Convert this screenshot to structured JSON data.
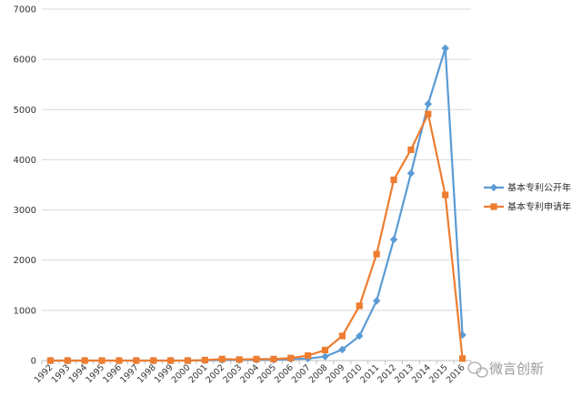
{
  "chart_data": {
    "type": "line",
    "title": "",
    "xlabel": "",
    "ylabel": "",
    "ylim": [
      0,
      7000
    ],
    "yticks": [
      0,
      1000,
      2000,
      3000,
      4000,
      5000,
      6000,
      7000
    ],
    "grid": "horizontal",
    "legend": "right",
    "categories": [
      "1992",
      "1993",
      "1994",
      "1995",
      "1996",
      "1997",
      "1998",
      "1999",
      "2000",
      "2001",
      "2002",
      "2003",
      "2004",
      "2005",
      "2006",
      "2007",
      "2008",
      "2009",
      "2010",
      "2011",
      "2012",
      "2013",
      "2014",
      "2015",
      "2016"
    ],
    "series": [
      {
        "name": "基本专利公开年",
        "color": "#5b9bd5",
        "marker": "diamond",
        "values": [
          0,
          0,
          0,
          0,
          0,
          0,
          0,
          0,
          0,
          5,
          10,
          10,
          15,
          15,
          30,
          40,
          80,
          220,
          490,
          1190,
          2410,
          3730,
          5110,
          6220,
          510
        ]
      },
      {
        "name": "基本专利申请年",
        "color": "#ed7d31",
        "marker": "square",
        "values": [
          0,
          0,
          0,
          0,
          0,
          0,
          0,
          0,
          0,
          10,
          30,
          20,
          30,
          30,
          50,
          100,
          210,
          490,
          1090,
          2120,
          3600,
          4200,
          4910,
          3300,
          40
        ]
      }
    ]
  },
  "watermark": {
    "text": "微言创新",
    "icon": "wechat-icon"
  }
}
